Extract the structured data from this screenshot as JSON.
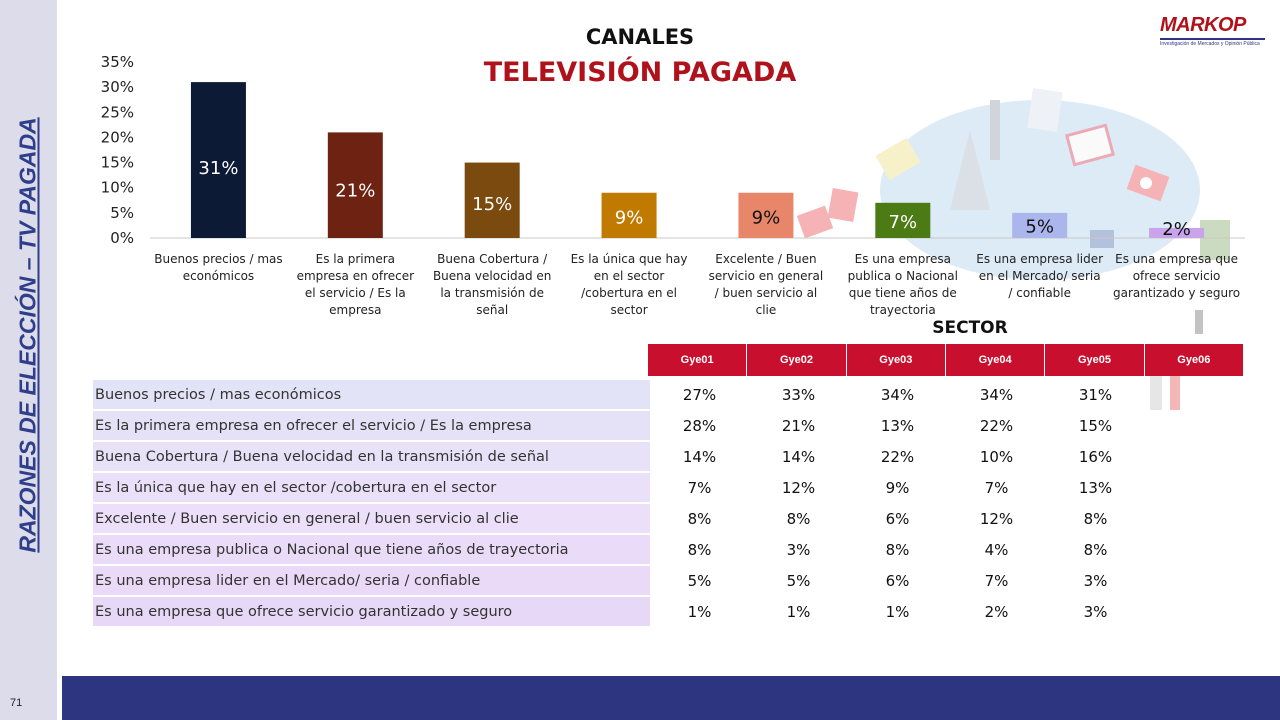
{
  "side_title": "RAZONES DE ELECCIÓN – TV PAGADA",
  "page_number": "71",
  "logo": {
    "text": "MARKOP",
    "subtitle": "Investigación de Mercados y Opinión Pública"
  },
  "chart_data": {
    "type": "bar",
    "title": "CANALES",
    "subtitle": "TELEVISIÓN PAGADA",
    "categories": [
      "Buenos precios / mas económicos",
      "Es la primera empresa en ofrecer el servicio / Es la empresa",
      "Buena Cobertura / Buena velocidad en la transmisión de señal",
      "Es la única que hay en el sector /cobertura en el sector",
      "Excelente / Buen servicio en general / buen servicio al clie",
      "Es una empresa publica o Nacional que tiene años de trayectoria",
      "Es una empresa lider en el Mercado/ seria / confiable",
      "Es una empresa que ofrece servicio garantizado y seguro"
    ],
    "values": [
      31,
      21,
      15,
      9,
      9,
      7,
      5,
      2
    ],
    "data_labels": [
      "31%",
      "21%",
      "15%",
      "9%",
      "9%",
      "7%",
      "5%",
      "2%"
    ],
    "colors": [
      "#0c1a36",
      "#6e2312",
      "#7b4a0e",
      "#c07a00",
      "#e8866a",
      "#4c7a14",
      "#aab6ec",
      "#c9a4ea"
    ],
    "label_colors": [
      "#ffffff",
      "#ffffff",
      "#ffffff",
      "#ffffff",
      "#111111",
      "#ffffff",
      "#111111",
      "#111111"
    ],
    "ylim": [
      0,
      35
    ],
    "yticks": [
      "0%",
      "5%",
      "10%",
      "15%",
      "20%",
      "25%",
      "30%",
      "35%"
    ],
    "grid": false,
    "legend": "none"
  },
  "table": {
    "sector_label": "SECTOR",
    "columns": [
      "Gye01",
      "Gye02",
      "Gye03",
      "Gye04",
      "Gye05",
      "Gye06"
    ],
    "rows": [
      {
        "label": "Buenos precios / mas económicos",
        "values": [
          "27%",
          "33%",
          "34%",
          "34%",
          "31%",
          ""
        ]
      },
      {
        "label": "Es la primera empresa en ofrecer el servicio / Es la empresa",
        "values": [
          "28%",
          "21%",
          "13%",
          "22%",
          "15%",
          ""
        ]
      },
      {
        "label": "Buena Cobertura / Buena velocidad en la transmisión de señal",
        "values": [
          "14%",
          "14%",
          "22%",
          "10%",
          "16%",
          ""
        ]
      },
      {
        "label": "Es la única que hay en el sector /cobertura en el sector",
        "values": [
          "7%",
          "12%",
          "9%",
          "7%",
          "13%",
          ""
        ]
      },
      {
        "label": "Excelente / Buen servicio en general / buen servicio al clie",
        "values": [
          "8%",
          "8%",
          "6%",
          "12%",
          "8%",
          ""
        ]
      },
      {
        "label": "Es una empresa publica o Nacional  que tiene años de trayectoria",
        "values": [
          "8%",
          "3%",
          "8%",
          "4%",
          "8%",
          ""
        ]
      },
      {
        "label": "Es una empresa  lider en el Mercado/ seria / confiable",
        "values": [
          "5%",
          "5%",
          "6%",
          "7%",
          "3%",
          ""
        ]
      },
      {
        "label": "Es una empresa que ofrece servicio garantizado y seguro",
        "values": [
          "1%",
          "1%",
          "1%",
          "2%",
          "3%",
          ""
        ]
      }
    ],
    "row_colors": [
      "#e2e3f6",
      "#e5e2f7",
      "#e7e2f8",
      "#ebe0f9",
      "#ecdff9",
      "#eadcf8",
      "#eadaf7",
      "#e8d8f7"
    ]
  },
  "colors": {
    "accent_red": "#c8102e",
    "navy": "#2e3580",
    "title_red": "#b0121b"
  }
}
